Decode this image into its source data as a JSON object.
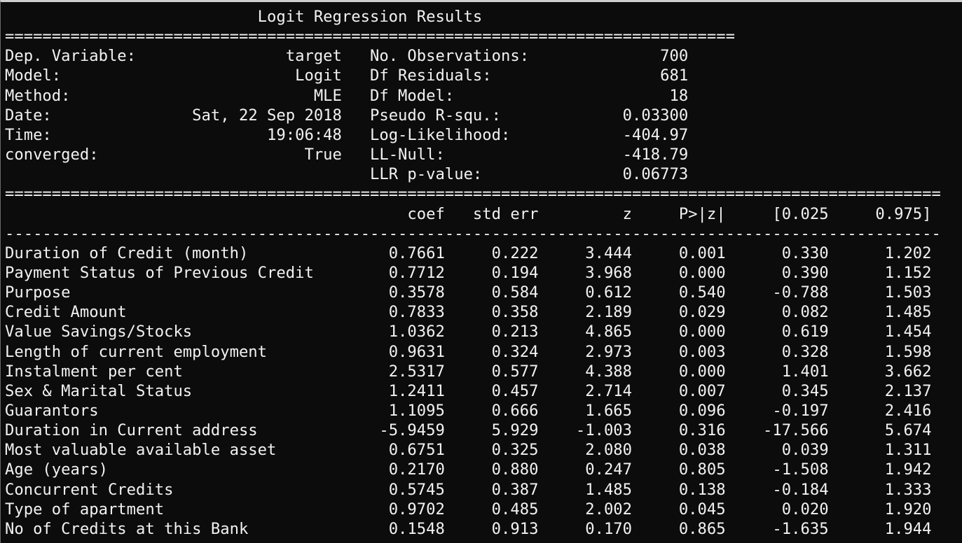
{
  "title": "Logit Regression Results",
  "header_rule": "==============================================================================",
  "summary": [
    {
      "left_label": "Dep. Variable:",
      "left_value": "target",
      "right_label": "No. Observations:",
      "right_value": "700"
    },
    {
      "left_label": "Model:",
      "left_value": "Logit",
      "right_label": "Df Residuals:",
      "right_value": "681"
    },
    {
      "left_label": "Method:",
      "left_value": "MLE",
      "right_label": "Df Model:",
      "right_value": "18"
    },
    {
      "left_label": "Date:",
      "left_value": "Sat, 22 Sep 2018",
      "right_label": "Pseudo R-squ.:",
      "right_value": "0.03300"
    },
    {
      "left_label": "Time:",
      "left_value": "19:06:48",
      "right_label": "Log-Likelihood:",
      "right_value": "-404.97"
    },
    {
      "left_label": "converged:",
      "left_value": "True",
      "right_label": "LL-Null:",
      "right_value": "-418.79"
    },
    {
      "left_label": "",
      "left_value": "",
      "right_label": "LLR p-value:",
      "right_value": "0.06773"
    }
  ],
  "table_rule": "====================================================================================================",
  "columns": [
    "coef",
    "std err",
    "z",
    "P>|z|",
    "[0.025",
    "0.975]"
  ],
  "column_rule": "----------------------------------------------------------------------------------------------------",
  "rows": [
    {
      "name": "Duration of Credit (month)",
      "values": [
        "0.7661",
        "0.222",
        "3.444",
        "0.001",
        "0.330",
        "1.202"
      ]
    },
    {
      "name": "Payment Status of Previous Credit",
      "values": [
        "0.7712",
        "0.194",
        "3.968",
        "0.000",
        "0.390",
        "1.152"
      ]
    },
    {
      "name": "Purpose",
      "values": [
        "0.3578",
        "0.584",
        "0.612",
        "0.540",
        "-0.788",
        "1.503"
      ]
    },
    {
      "name": "Credit Amount",
      "values": [
        "0.7833",
        "0.358",
        "2.189",
        "0.029",
        "0.082",
        "1.485"
      ]
    },
    {
      "name": "Value Savings/Stocks",
      "values": [
        "1.0362",
        "0.213",
        "4.865",
        "0.000",
        "0.619",
        "1.454"
      ]
    },
    {
      "name": "Length of current employment",
      "values": [
        "0.9631",
        "0.324",
        "2.973",
        "0.003",
        "0.328",
        "1.598"
      ]
    },
    {
      "name": "Instalment per cent",
      "values": [
        "2.5317",
        "0.577",
        "4.388",
        "0.000",
        "1.401",
        "3.662"
      ]
    },
    {
      "name": "Sex & Marital Status",
      "values": [
        "1.2411",
        "0.457",
        "2.714",
        "0.007",
        "0.345",
        "2.137"
      ]
    },
    {
      "name": "Guarantors",
      "values": [
        "1.1095",
        "0.666",
        "1.665",
        "0.096",
        "-0.197",
        "2.416"
      ]
    },
    {
      "name": "Duration in Current address",
      "values": [
        "-5.9459",
        "5.929",
        "-1.003",
        "0.316",
        "-17.566",
        "5.674"
      ]
    },
    {
      "name": "Most valuable available asset",
      "values": [
        "0.6751",
        "0.325",
        "2.080",
        "0.038",
        "0.039",
        "1.311"
      ]
    },
    {
      "name": "Age (years)",
      "values": [
        "0.2170",
        "0.880",
        "0.247",
        "0.805",
        "-1.508",
        "1.942"
      ]
    },
    {
      "name": "Concurrent Credits",
      "values": [
        "0.5745",
        "0.387",
        "1.485",
        "0.138",
        "-0.184",
        "1.333"
      ]
    },
    {
      "name": "Type of apartment",
      "values": [
        "0.9702",
        "0.485",
        "2.002",
        "0.045",
        "0.020",
        "1.920"
      ]
    },
    {
      "name": "No of Credits at this Bank",
      "values": [
        "0.1548",
        "0.913",
        "0.170",
        "0.865",
        "-1.635",
        "1.944"
      ]
    }
  ],
  "colors": {
    "background": "#0c0c0c",
    "text": "#f2f2f2"
  }
}
